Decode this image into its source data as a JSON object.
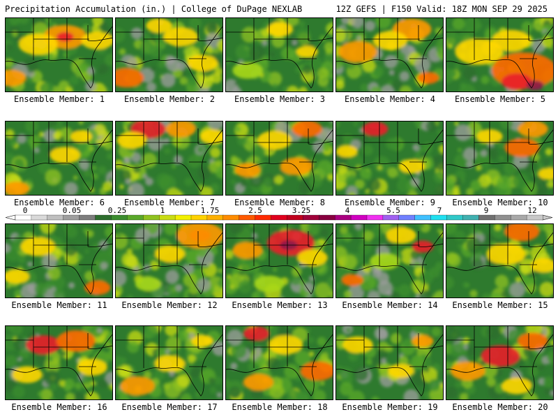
{
  "header": {
    "title": "Precipitation Accumulation (in.) | College of DuPage NEXLAB",
    "run_info": "12Z GEFS | F150 Valid: 18Z MON SEP 29 2025"
  },
  "panel_label_prefix": "Ensemble Member: ",
  "members": [
    {
      "label": "Ensemble Member: 1",
      "spots": [
        [
          0.55,
          0.25,
          "#ff9900",
          0.2
        ],
        [
          0.55,
          0.25,
          "#e8202a",
          0.08
        ],
        [
          0.05,
          0.8,
          "#ff9900",
          0.14
        ],
        [
          0.3,
          0.35,
          "#ffd700",
          0.18
        ],
        [
          0.85,
          0.3,
          "#ffd700",
          0.15
        ]
      ]
    },
    {
      "label": "Ensemble Member: 2",
      "spots": [
        [
          0.1,
          0.8,
          "#ff6a00",
          0.16
        ],
        [
          0.6,
          0.25,
          "#ffd700",
          0.16
        ],
        [
          0.8,
          0.6,
          "#ffd700",
          0.14
        ],
        [
          0.4,
          0.1,
          "#ffd700",
          0.12
        ]
      ]
    },
    {
      "label": "Ensemble Member: 3",
      "spots": [
        [
          0.5,
          0.15,
          "#ffd700",
          0.12
        ],
        [
          0.75,
          0.45,
          "#ffd700",
          0.1
        ],
        [
          0.2,
          0.7,
          "#a9d81a",
          0.14
        ]
      ]
    },
    {
      "label": "Ensemble Member: 4",
      "spots": [
        [
          0.2,
          0.45,
          "#ff9900",
          0.18
        ],
        [
          0.7,
          0.15,
          "#ff9900",
          0.18
        ],
        [
          0.85,
          0.8,
          "#ff6a00",
          0.1
        ],
        [
          0.5,
          0.3,
          "#ffd700",
          0.16
        ]
      ]
    },
    {
      "label": "Ensemble Member: 5",
      "spots": [
        [
          0.72,
          0.7,
          "#ff6a00",
          0.3
        ],
        [
          0.65,
          0.85,
          "#e8202a",
          0.14
        ],
        [
          0.82,
          0.9,
          "#8b1a4a",
          0.08
        ],
        [
          0.3,
          0.45,
          "#ffd700",
          0.22
        ],
        [
          0.6,
          0.3,
          "#ffd700",
          0.18
        ]
      ]
    },
    {
      "label": "Ensemble Member: 6",
      "spots": [
        [
          0.1,
          0.9,
          "#ff9900",
          0.12
        ],
        [
          0.55,
          0.45,
          "#ffd700",
          0.14
        ],
        [
          0.7,
          0.2,
          "#ffd700",
          0.1
        ]
      ]
    },
    {
      "label": "Ensemble Member: 7",
      "spots": [
        [
          0.3,
          0.1,
          "#e8202a",
          0.16
        ],
        [
          0.6,
          0.1,
          "#ff9900",
          0.14
        ],
        [
          0.15,
          0.25,
          "#ffd700",
          0.14
        ],
        [
          0.9,
          0.2,
          "#ffd700",
          0.12
        ]
      ]
    },
    {
      "label": "Ensemble Member: 8",
      "spots": [
        [
          0.75,
          0.1,
          "#ff6a00",
          0.14
        ],
        [
          0.2,
          0.65,
          "#ff9900",
          0.12
        ],
        [
          0.65,
          0.6,
          "#ff9900",
          0.15
        ],
        [
          0.45,
          0.25,
          "#ffd700",
          0.16
        ]
      ]
    },
    {
      "label": "Ensemble Member: 9",
      "spots": [
        [
          0.36,
          0.05,
          "#8b1a4a",
          0.06
        ],
        [
          0.36,
          0.1,
          "#e8202a",
          0.12
        ],
        [
          0.7,
          0.6,
          "#ffd700",
          0.12
        ],
        [
          0.1,
          0.4,
          "#ffd700",
          0.1
        ]
      ]
    },
    {
      "label": "Ensemble Member: 10",
      "spots": [
        [
          0.7,
          0.35,
          "#ff6a00",
          0.16
        ],
        [
          0.8,
          0.1,
          "#ff9900",
          0.14
        ],
        [
          0.4,
          0.2,
          "#ffd700",
          0.12
        ],
        [
          0.95,
          0.7,
          "#ffd700",
          0.1
        ]
      ]
    },
    {
      "label": "Ensemble Member: 11",
      "spots": [
        [
          0.85,
          0.85,
          "#ff6a00",
          0.12
        ],
        [
          0.3,
          0.3,
          "#ffd700",
          0.16
        ],
        [
          0.1,
          0.7,
          "#ffd700",
          0.12
        ]
      ]
    },
    {
      "label": "Ensemble Member: 12",
      "spots": [
        [
          0.78,
          0.15,
          "#e8202a",
          0.1
        ],
        [
          0.78,
          0.15,
          "#ff9900",
          0.22
        ],
        [
          0.5,
          0.4,
          "#ffd700",
          0.14
        ],
        [
          0.3,
          0.8,
          "#a9d81a",
          0.12
        ]
      ]
    },
    {
      "label": "Ensemble Member: 13",
      "spots": [
        [
          0.6,
          0.25,
          "#e8202a",
          0.22
        ],
        [
          0.58,
          0.28,
          "#8b1a4a",
          0.08
        ],
        [
          0.2,
          0.35,
          "#ff9900",
          0.14
        ],
        [
          0.8,
          0.45,
          "#ffd700",
          0.14
        ],
        [
          0.4,
          0.8,
          "#a9d81a",
          0.14
        ]
      ]
    },
    {
      "label": "Ensemble Member: 14",
      "spots": [
        [
          0.8,
          0.3,
          "#e8202a",
          0.1
        ],
        [
          0.15,
          0.75,
          "#ff6a00",
          0.1
        ],
        [
          0.6,
          0.15,
          "#ffd700",
          0.14
        ],
        [
          0.45,
          0.5,
          "#a9d81a",
          0.14
        ]
      ]
    },
    {
      "label": "Ensemble Member: 15",
      "spots": [
        [
          0.7,
          0.1,
          "#ff6a00",
          0.16
        ],
        [
          0.55,
          0.4,
          "#ffd700",
          0.18
        ],
        [
          0.9,
          0.55,
          "#ffd700",
          0.12
        ]
      ]
    },
    {
      "label": "Ensemble Member: 16",
      "spots": [
        [
          0.35,
          0.25,
          "#e8202a",
          0.16
        ],
        [
          0.65,
          0.2,
          "#ff6a00",
          0.18
        ],
        [
          0.2,
          0.65,
          "#ffd700",
          0.14
        ],
        [
          0.8,
          0.55,
          "#ffd700",
          0.14
        ]
      ]
    },
    {
      "label": "Ensemble Member: 17",
      "spots": [
        [
          0.2,
          0.8,
          "#ff9900",
          0.16
        ],
        [
          0.5,
          0.5,
          "#ffd700",
          0.14
        ],
        [
          0.8,
          0.2,
          "#ffd700",
          0.1
        ]
      ]
    },
    {
      "label": "Ensemble Member: 18",
      "spots": [
        [
          0.28,
          0.1,
          "#e8202a",
          0.12
        ],
        [
          0.85,
          0.6,
          "#ff6a00",
          0.16
        ],
        [
          0.3,
          0.75,
          "#ff9900",
          0.14
        ],
        [
          0.55,
          0.25,
          "#ffd700",
          0.16
        ]
      ]
    },
    {
      "label": "Ensemble Member: 19",
      "spots": [
        [
          0.2,
          0.25,
          "#ffd700",
          0.14
        ],
        [
          0.6,
          0.6,
          "#ffd700",
          0.12
        ],
        [
          0.8,
          0.2,
          "#ff9900",
          0.1
        ]
      ]
    },
    {
      "label": "Ensemble Member: 20",
      "spots": [
        [
          0.5,
          0.4,
          "#e8202a",
          0.18
        ],
        [
          0.8,
          0.2,
          "#ff6a00",
          0.14
        ],
        [
          0.2,
          0.6,
          "#ff9900",
          0.16
        ],
        [
          0.65,
          0.8,
          "#ffd700",
          0.14
        ]
      ]
    }
  ],
  "colorbar": {
    "tick_labels": [
      "0",
      "0.05",
      "0.25",
      "1",
      "1.75",
      "2.5",
      "3.25",
      "4",
      "5.5",
      "7",
      "9",
      "12"
    ],
    "colors": [
      "#ffffff",
      "#d9d9d9",
      "#bfbfbf",
      "#9e9e9e",
      "#7d7d7d",
      "#2e6e2e",
      "#3a8c2e",
      "#5aa82a",
      "#8fc21f",
      "#c9dc14",
      "#f2f000",
      "#ffd200",
      "#ffb000",
      "#ff8c00",
      "#ff5a00",
      "#ff2a00",
      "#e0001e",
      "#c0001e",
      "#a0003a",
      "#880040",
      "#aa0080",
      "#d000c0",
      "#f030f0",
      "#a060f0",
      "#7080ff",
      "#40c0ff",
      "#20e0f0",
      "#30c8c8",
      "#40b0b0",
      "#707070",
      "#909090",
      "#a8a8a8",
      "#c8c8c8"
    ]
  },
  "colors": {
    "map_background": "#2e7a2e",
    "land_base": "#3d8f2f",
    "border": "#000000"
  }
}
